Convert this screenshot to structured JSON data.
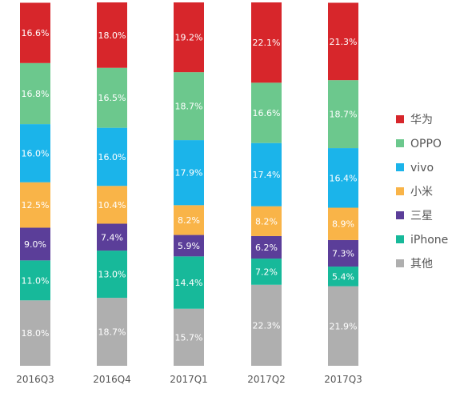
{
  "chart_data": {
    "type": "bar",
    "stacked": true,
    "title": "",
    "xlabel": "",
    "ylabel": "",
    "ylim": [
      0,
      100
    ],
    "grid": false,
    "legend_position": "right",
    "categories": [
      "2016Q3",
      "2016Q4",
      "2017Q1",
      "2017Q2",
      "2017Q3"
    ],
    "series": [
      {
        "name": "华为",
        "color": "#d7262b",
        "values": [
          16.6,
          18.0,
          19.2,
          22.1,
          21.3
        ],
        "labels": [
          "16.6%",
          "18.0%",
          "19.2%",
          "22.1%",
          "21.3%"
        ]
      },
      {
        "name": "OPPO",
        "color": "#6cc88d",
        "values": [
          16.8,
          16.5,
          18.7,
          16.6,
          18.7
        ],
        "labels": [
          "16.8%",
          "16.5%",
          "18.7%",
          "16.6%",
          "18.7%"
        ]
      },
      {
        "name": "vivo",
        "color": "#1bb4ea",
        "values": [
          16.0,
          16.0,
          17.9,
          17.4,
          16.4
        ],
        "labels": [
          "16.0%",
          "16.0%",
          "17.9%",
          "17.4%",
          "16.4%"
        ]
      },
      {
        "name": "小米",
        "color": "#f9b448",
        "values": [
          12.5,
          10.4,
          8.2,
          8.2,
          8.9
        ],
        "labels": [
          "12.5%",
          "10.4%",
          "8.2%",
          "8.2%",
          "8.9%"
        ]
      },
      {
        "name": "三星",
        "color": "#5b3e99",
        "values": [
          9.0,
          7.4,
          5.9,
          6.2,
          7.3
        ],
        "labels": [
          "9.0%",
          "7.4%",
          "5.9%",
          "6.2%",
          "7.3%"
        ]
      },
      {
        "name": "iPhone",
        "color": "#17b99a",
        "values": [
          11.0,
          13.0,
          14.4,
          7.2,
          5.4
        ],
        "labels": [
          "11.0%",
          "13.0%",
          "14.4%",
          "7.2%",
          "5.4%"
        ]
      },
      {
        "name": "其他",
        "color": "#afafaf",
        "values": [
          18.0,
          18.7,
          15.7,
          22.3,
          21.9
        ],
        "labels": [
          "18.0%",
          "18.7%",
          "15.7%",
          "22.3%",
          "21.9%"
        ]
      }
    ]
  }
}
